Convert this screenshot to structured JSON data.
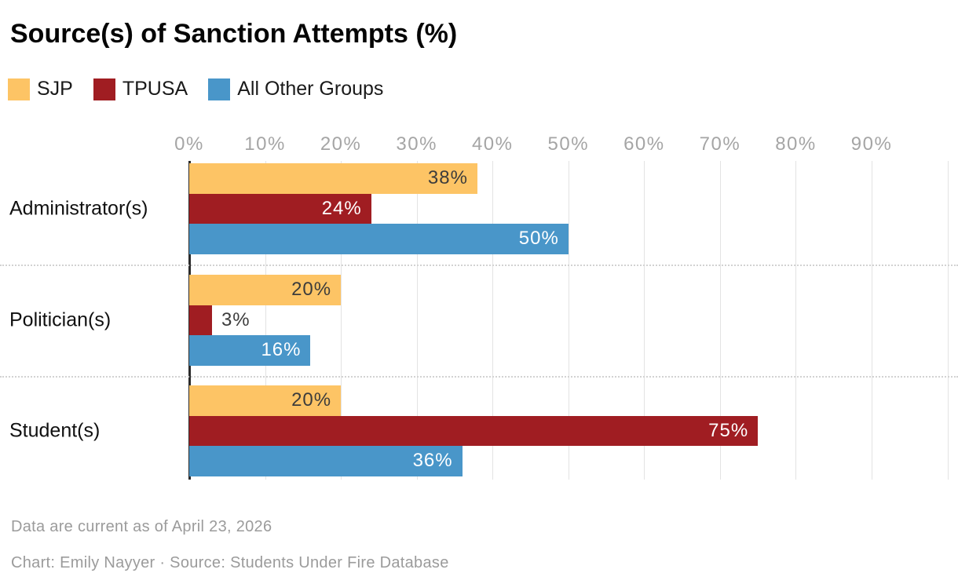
{
  "chart_data": {
    "type": "bar",
    "orientation": "horizontal",
    "title": "Source(s) of Sanction Attempts (%)",
    "categories": [
      "Administrator(s)",
      "Politician(s)",
      "Student(s)"
    ],
    "series": [
      {
        "name": "SJP",
        "color": "#FDC465",
        "label_color": "#3c3c3c",
        "values": [
          38,
          20,
          20
        ]
      },
      {
        "name": "TPUSA",
        "color": "#A01D22",
        "label_color": "#ffffff",
        "values": [
          24,
          3,
          75
        ]
      },
      {
        "name": "All Other Groups",
        "color": "#4996C9",
        "label_color": "#ffffff",
        "values": [
          50,
          16,
          36
        ]
      }
    ],
    "x_ticks": [
      "0%",
      "10%",
      "20%",
      "30%",
      "40%",
      "50%",
      "60%",
      "70%",
      "80%",
      "90%"
    ],
    "xlim": [
      0,
      100
    ],
    "value_suffix": "%",
    "grid": true,
    "grid_color": "#e3e3e3",
    "axis_line_color": "#2b2b2b",
    "tick_color": "#a5a5a5",
    "legend_position": "top",
    "outside_label_color": "#3c3c3c"
  },
  "notes": {
    "updated": "Data are current as of April 23, 2026",
    "byline": "Chart: Emily Nayyer · Source: Students Under Fire Database"
  }
}
